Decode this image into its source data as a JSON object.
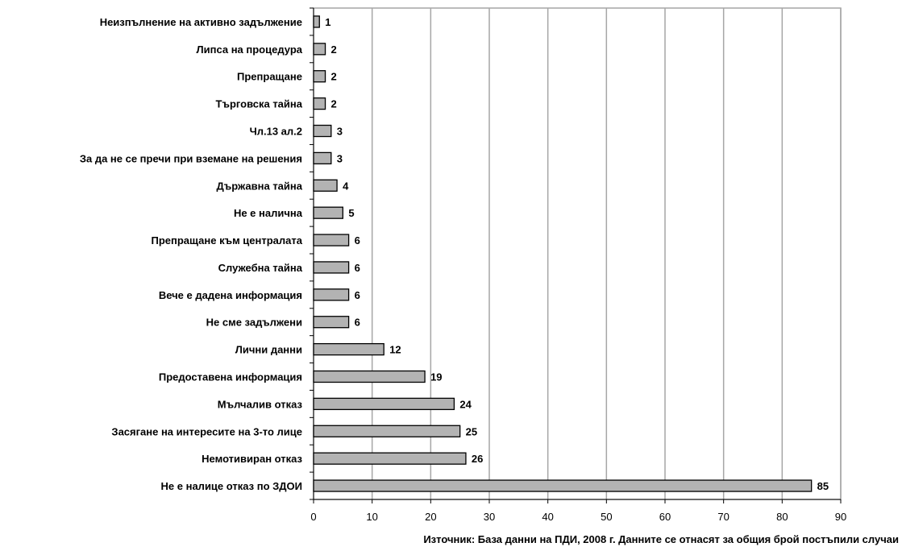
{
  "chart_data": {
    "type": "bar",
    "orientation": "horizontal",
    "categories": [
      "Неизпълнение на активно задължение",
      "Липса на процедура",
      "Препращане",
      "Търговска тайна",
      "Чл.13 ал.2",
      "За да не се пречи при вземане на решения",
      "Държавна тайна",
      "Не е налична",
      "Препращане към централата",
      "Служебна тайна",
      "Вече е дадена информация",
      "Не сме задължени",
      "Лични данни",
      "Предоставена информация",
      "Мълчалив отказ",
      "Засягане на интересите на 3-то лице",
      "Немотивиран отказ",
      "Не е налице отказ по ЗДОИ"
    ],
    "values": [
      1,
      2,
      2,
      2,
      3,
      3,
      4,
      5,
      6,
      6,
      6,
      6,
      12,
      19,
      24,
      25,
      26,
      85
    ],
    "xlim": [
      0,
      90
    ],
    "xticks": [
      0,
      10,
      20,
      30,
      40,
      50,
      60,
      70,
      80,
      90
    ],
    "grid": true,
    "bar_color": "#b3b3b3",
    "bar_edge_color": "#000000",
    "grid_color": "#a6a6a6",
    "title": "",
    "xlabel": "",
    "ylabel": ""
  },
  "source_note": "Източник: База данни на ПДИ, 2008 г. Данните се отнасят за общия брой постъпили случаи"
}
